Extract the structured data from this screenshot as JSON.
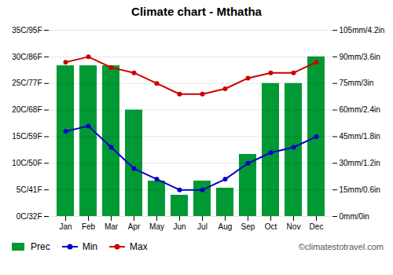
{
  "chart_data": {
    "type": "bar",
    "title": "Climate chart - Mthatha",
    "categories": [
      "Jan",
      "Feb",
      "Mar",
      "Apr",
      "May",
      "Jun",
      "Jul",
      "Aug",
      "Sep",
      "Oct",
      "Nov",
      "Dec"
    ],
    "series": [
      {
        "name": "Prec",
        "type": "bar",
        "axis": "y2",
        "color": "#009933",
        "values": [
          85,
          85,
          85,
          60,
          20,
          12,
          20,
          16,
          35,
          75,
          75,
          90
        ]
      },
      {
        "name": "Min",
        "type": "line",
        "color": "#0000cc",
        "marker": "circle",
        "values": [
          16,
          17,
          13,
          9,
          7,
          5,
          5,
          7,
          10,
          12,
          13,
          15
        ]
      },
      {
        "name": "Max",
        "type": "line",
        "color": "#cc0000",
        "marker": "circle",
        "values": [
          29,
          30,
          28,
          27,
          25,
          23,
          23,
          24,
          26,
          27,
          27,
          29
        ]
      }
    ],
    "ylim": [
      0,
      35
    ],
    "yticks": [
      {
        "value": 0,
        "label": "0C/32F"
      },
      {
        "value": 5,
        "label": "5C/41F"
      },
      {
        "value": 10,
        "label": "10C/50F"
      },
      {
        "value": 15,
        "label": "15C/59F"
      },
      {
        "value": 20,
        "label": "20C/68F"
      },
      {
        "value": 25,
        "label": "25C/77F"
      },
      {
        "value": 30,
        "label": "30C/86F"
      },
      {
        "value": 35,
        "label": "35C/95F"
      }
    ],
    "y2lim": [
      0,
      105
    ],
    "y2ticks": [
      {
        "value": 0,
        "label": "0mm/0in"
      },
      {
        "value": 15,
        "label": "15mm/0.6in"
      },
      {
        "value": 30,
        "label": "30mm/1.2in"
      },
      {
        "value": 45,
        "label": "45mm/1.8in"
      },
      {
        "value": 60,
        "label": "60mm/2.4in"
      },
      {
        "value": 75,
        "label": "75mm/3in"
      },
      {
        "value": 90,
        "label": "90mm/3.6in"
      },
      {
        "value": 105,
        "label": "105mm/4.2in"
      }
    ],
    "grid": true,
    "legend": "bottom",
    "annotations": [
      "©climatestotravel.com"
    ]
  }
}
